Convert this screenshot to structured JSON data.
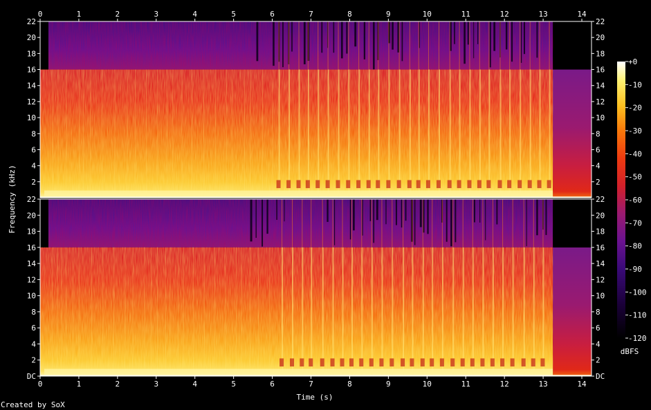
{
  "chart_data": {
    "type": "heatmap",
    "title": "",
    "xlabel": "Time (s)",
    "ylabel": "Frequency (kHz)",
    "xlim": [
      0,
      14.25
    ],
    "ylim": [
      0,
      22
    ],
    "x_ticks": [
      "0",
      "1",
      "2",
      "3",
      "4",
      "5",
      "6",
      "7",
      "8",
      "9",
      "10",
      "11",
      "12",
      "13",
      "14"
    ],
    "y_ticks_upper": [
      "2",
      "4",
      "6",
      "8",
      "10",
      "12",
      "14",
      "16",
      "18",
      "20",
      "22"
    ],
    "y_ticks_lower": [
      "DC",
      "2",
      "4",
      "6",
      "8",
      "10",
      "12",
      "14",
      "16",
      "18",
      "20",
      "22"
    ],
    "channels": 2,
    "colorbar": {
      "label": "dBFS",
      "range": [
        -120,
        0
      ],
      "ticks": [
        "+0",
        "-10",
        "-20",
        "-30",
        "-40",
        "-50",
        "-60",
        "-70",
        "-80",
        "-90",
        "-100",
        "-110",
        "-120"
      ]
    },
    "features": {
      "lowpass_cutoff_khz": 16,
      "audio_end_s": 13.25,
      "rhythmic_transients_from_s": 6
    }
  },
  "footer": {
    "credit": "Created by SoX"
  },
  "colors": {
    "background": "#000000",
    "text": "#ffffff",
    "colormap": [
      "#000000",
      "#1a0038",
      "#3a0a78",
      "#6a1290",
      "#9a1a70",
      "#d2202a",
      "#ee3a10",
      "#f8780a",
      "#fdc020",
      "#fef070",
      "#ffffff"
    ]
  }
}
